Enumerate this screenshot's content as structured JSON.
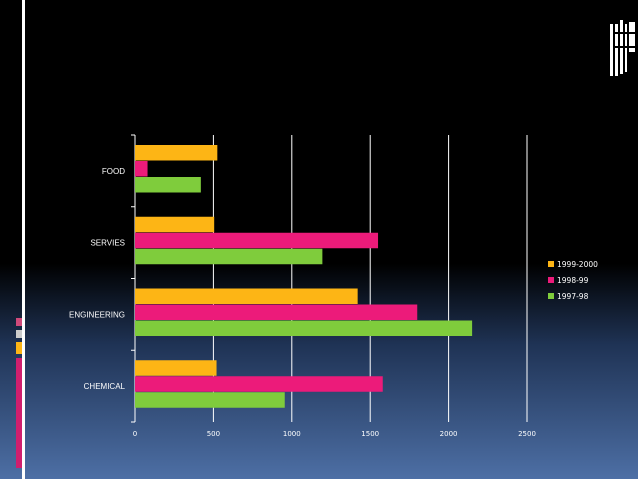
{
  "chart_data": {
    "type": "bar",
    "orientation": "horizontal",
    "categories": [
      "FOOD",
      "SERVIES",
      "ENGINEERING",
      "CHEMICAL"
    ],
    "series": [
      {
        "name": "1999-2000",
        "color": "#FDB515",
        "values": [
          525,
          505,
          1420,
          520
        ]
      },
      {
        "name": "1998-99",
        "color": "#EC1B7A",
        "values": [
          80,
          1550,
          1800,
          1580
        ]
      },
      {
        "name": "1997-98",
        "color": "#7FCC3C",
        "values": [
          420,
          1195,
          2150,
          955
        ]
      }
    ],
    "xlim": [
      0,
      2500
    ],
    "xticks": [
      0,
      500,
      1000,
      1500,
      2000,
      2500
    ],
    "xtick_labels": [
      "0",
      "500",
      "1000",
      "1500",
      "2000",
      "2500"
    ],
    "grid": true,
    "legend_position": "right",
    "title": "",
    "xlabel": "",
    "ylabel": ""
  }
}
